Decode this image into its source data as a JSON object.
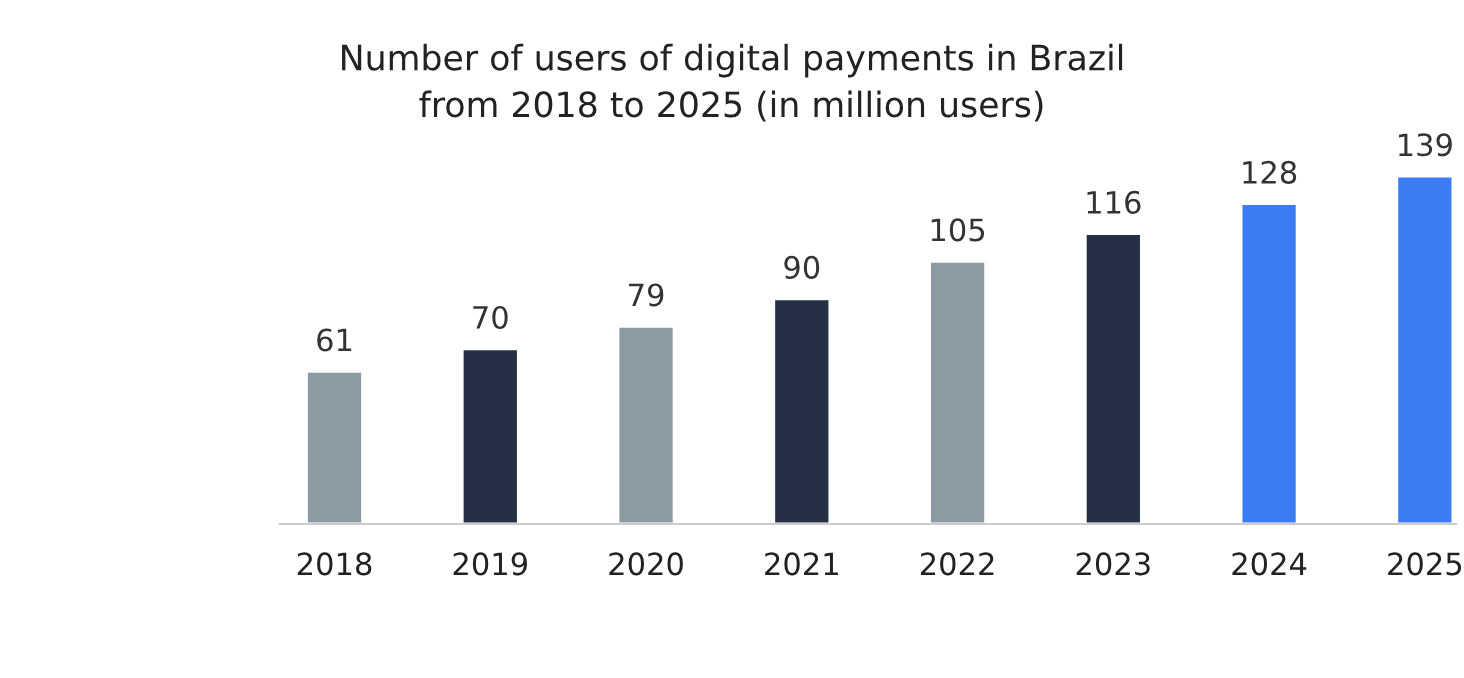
{
  "chart_data": {
    "type": "bar",
    "title": "Number of users of digital payments in Brazil\nfrom 2018 to 2025 (in million users)",
    "categories": [
      "2018",
      "2019",
      "2020",
      "2021",
      "2022",
      "2023",
      "2024",
      "2025"
    ],
    "values": [
      61,
      70,
      79,
      90,
      105,
      116,
      128,
      139
    ],
    "colors": [
      "#8c9aa3",
      "#253045",
      "#8c9aa3",
      "#253045",
      "#8c9aa3",
      "#253045",
      "#3b7cf5",
      "#3b7cf5"
    ],
    "data_labels": true,
    "grid": false,
    "legend": false
  }
}
